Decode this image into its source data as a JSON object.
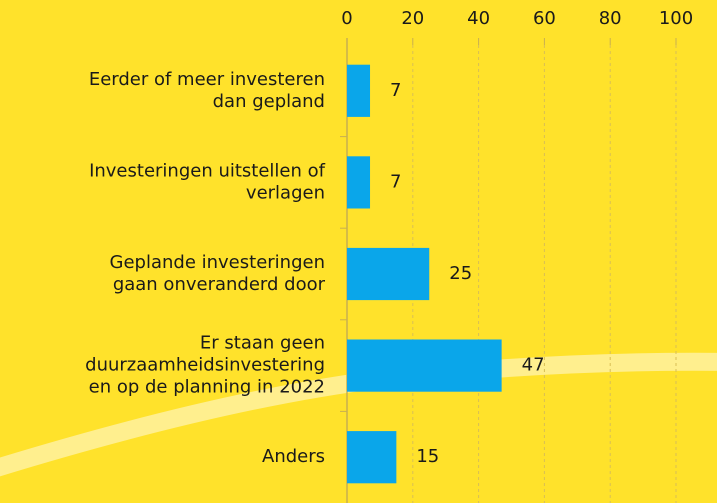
{
  "chart_data": {
    "type": "bar",
    "orientation": "horizontal",
    "categories": [
      [
        "Eerder of meer investeren",
        "dan gepland"
      ],
      [
        "Investeringen uitstellen of",
        "verlagen"
      ],
      [
        "Geplande investeringen",
        "gaan onveranderd door"
      ],
      [
        "Er staan geen",
        "duurzaamheidsinvestering",
        "en op de planning in 2022"
      ],
      [
        "Anders"
      ]
    ],
    "values": [
      7,
      7,
      25,
      47,
      15
    ],
    "color": "#0aa6ea",
    "xlim": [
      0,
      100
    ],
    "xticks": [
      0,
      20,
      40,
      60,
      80,
      100
    ],
    "grid": true
  }
}
